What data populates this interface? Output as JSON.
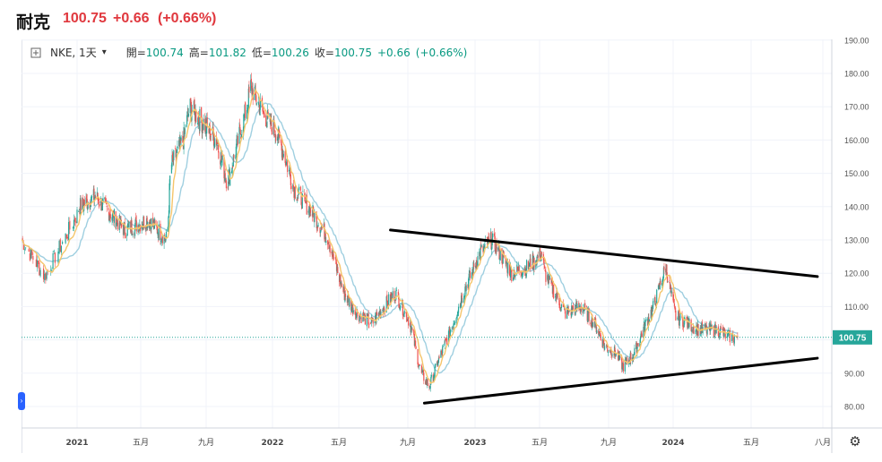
{
  "header": {
    "name": "耐克",
    "price": "100.75",
    "change": "+0.66",
    "change_pct": "(+0.66%)"
  },
  "legend": {
    "symbol": "NKE, 1天",
    "open_label": "開=",
    "open": "100.74",
    "high_label": "高=",
    "high": "101.82",
    "low_label": "低=",
    "low": "100.26",
    "close_label": "收=",
    "close": "100.75",
    "change": "+0.66",
    "change_pct": "(+0.66%)"
  },
  "colors": {
    "up": "#26a69a",
    "down": "#ef5350",
    "ma_fast": "#f5c56b",
    "ma_slow": "#9fcfe0",
    "trend": "#000000",
    "last_price": "#26a69a"
  },
  "icons": {
    "legend": "plus-square-icon",
    "settings": "gear-icon",
    "expand": "chevron-right-icon"
  },
  "chart_data": {
    "type": "candlestick",
    "grid": true,
    "x_ticks": [
      "2021",
      "五月",
      "九月",
      "2022",
      "五月",
      "九月",
      "2023",
      "五月",
      "九月",
      "2024",
      "五月",
      "八月"
    ],
    "y_ticks": [
      "80.00",
      "90.00",
      "100.00",
      "110.00",
      "120.00",
      "130.00",
      "140.00",
      "150.00",
      "160.00",
      "170.00",
      "180.00",
      "190.00"
    ],
    "ylim": [
      76,
      190
    ],
    "last_price_label": "100.75",
    "last_price": 100.75,
    "price_path": [
      [
        "2020-11-09",
        130
      ],
      [
        "2020-12-01",
        119
      ],
      [
        "2021-01-05",
        140
      ],
      [
        "2021-02-05",
        143
      ],
      [
        "2021-03-05",
        138
      ],
      [
        "2021-04-01",
        133
      ],
      [
        "2021-05-15",
        136
      ],
      [
        "2021-06-20",
        130
      ],
      [
        "2021-06-26",
        152
      ],
      [
        "2021-07-20",
        160
      ],
      [
        "2021-08-01",
        170
      ],
      [
        "2021-09-20",
        160
      ],
      [
        "2021-10-10",
        147
      ],
      [
        "2021-11-15",
        170
      ],
      [
        "2021-11-22",
        176
      ],
      [
        "2021-12-15",
        168
      ],
      [
        "2022-01-10",
        162
      ],
      [
        "2022-02-10",
        145
      ],
      [
        "2022-03-15",
        138
      ],
      [
        "2022-04-10",
        131
      ],
      [
        "2022-05-10",
        114
      ],
      [
        "2022-06-01",
        108
      ],
      [
        "2022-06-30",
        105
      ],
      [
        "2022-07-20",
        110
      ],
      [
        "2022-08-10",
        114
      ],
      [
        "2022-09-05",
        105
      ],
      [
        "2022-09-25",
        90
      ],
      [
        "2022-10-10",
        86
      ],
      [
        "2022-10-25",
        93
      ],
      [
        "2022-11-20",
        104
      ],
      [
        "2022-12-10",
        114
      ],
      [
        "2023-01-10",
        126
      ],
      [
        "2023-02-01",
        130
      ],
      [
        "2023-03-10",
        120
      ],
      [
        "2023-04-10",
        122
      ],
      [
        "2023-05-05",
        126
      ],
      [
        "2023-05-10",
        120
      ],
      [
        "2023-06-15",
        108
      ],
      [
        "2023-07-15",
        110
      ],
      [
        "2023-08-10",
        104
      ],
      [
        "2023-08-25",
        98
      ],
      [
        "2023-09-15",
        96
      ],
      [
        "2023-09-28",
        92
      ],
      [
        "2023-10-20",
        96
      ],
      [
        "2023-11-05",
        103
      ],
      [
        "2023-11-25",
        110
      ],
      [
        "2023-12-18",
        122
      ],
      [
        "2024-01-05",
        107
      ],
      [
        "2024-02-10",
        103
      ],
      [
        "2024-03-10",
        103
      ],
      [
        "2024-03-25",
        101
      ],
      [
        "2024-04-10",
        100.75
      ]
    ],
    "trendlines": [
      {
        "from": [
          "2022-08-01",
          133
        ],
        "to": [
          "2024-07-25",
          119
        ]
      },
      {
        "from": [
          "2022-10-01",
          81
        ],
        "to": [
          "2024-07-25",
          94.5
        ]
      }
    ]
  }
}
